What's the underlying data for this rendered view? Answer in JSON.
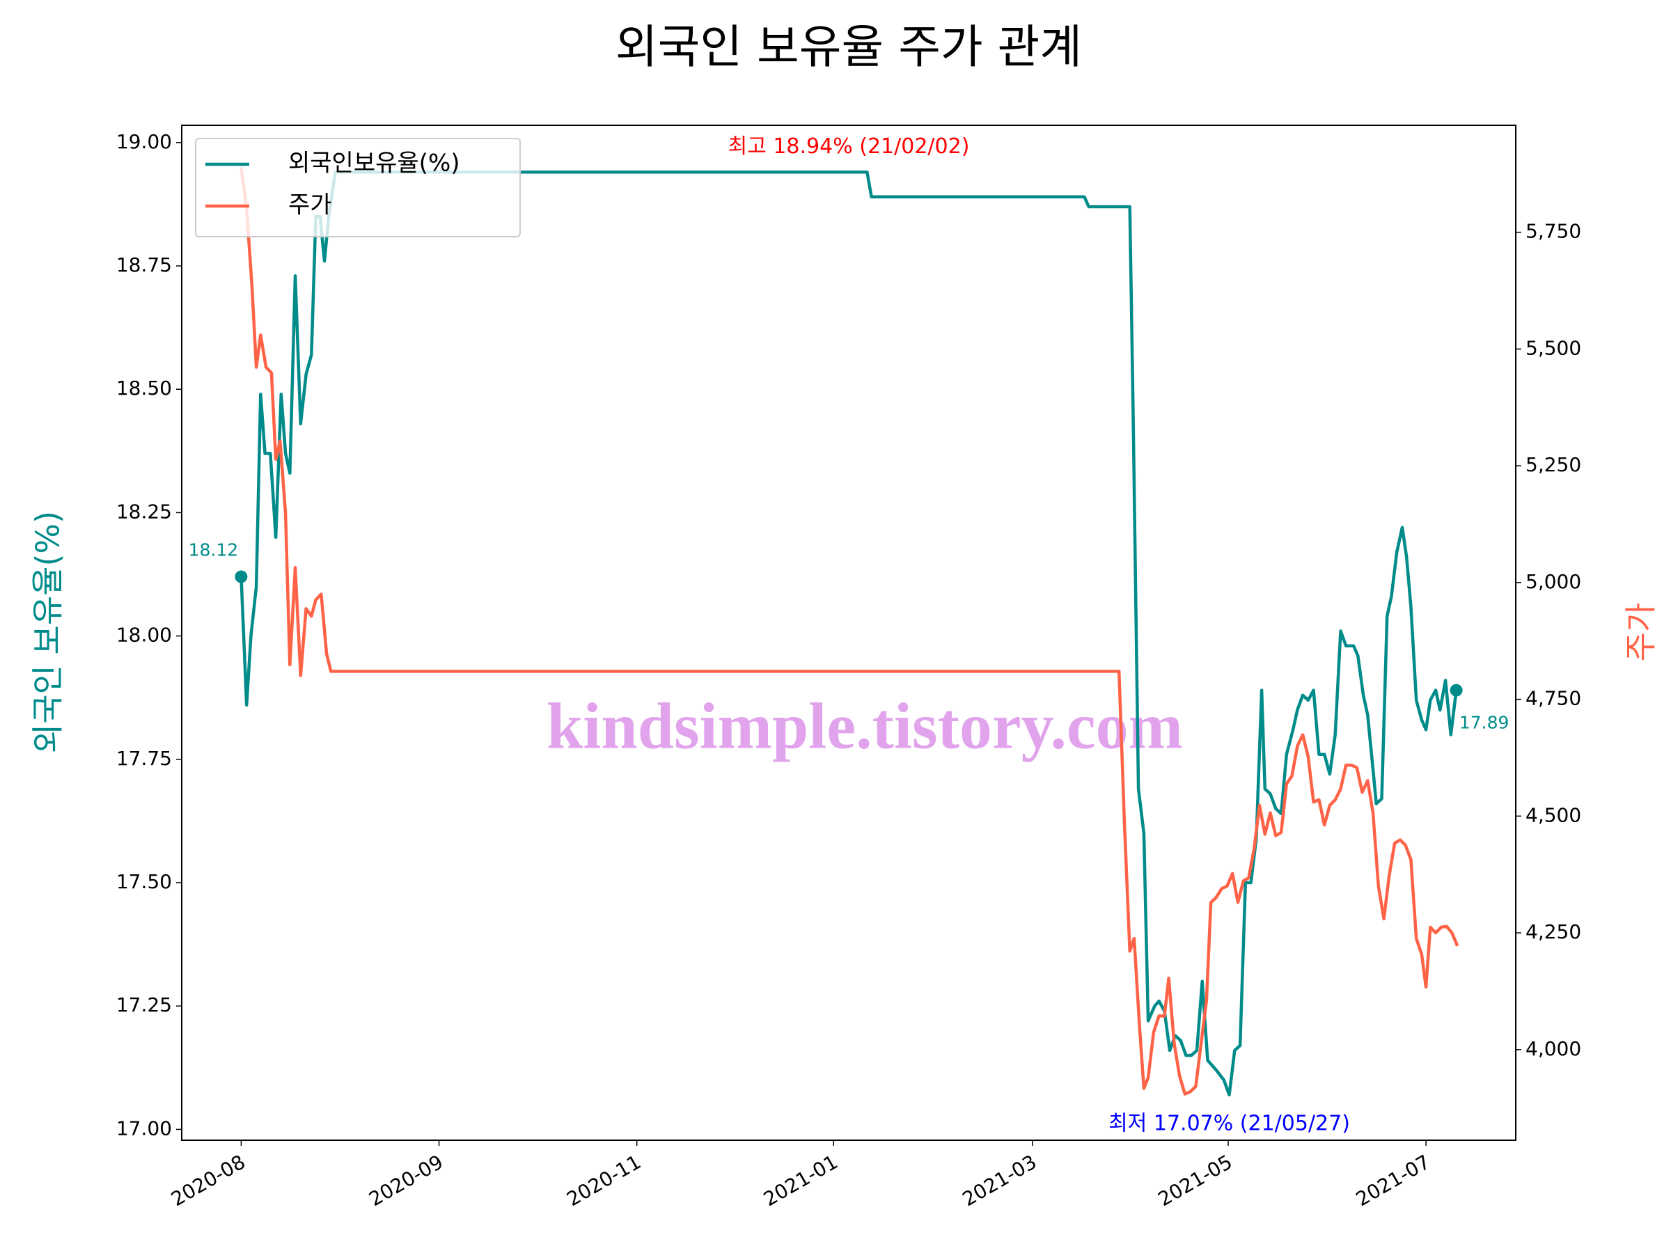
{
  "chart_data": {
    "type": "line",
    "title": "외국인 보유율 주가 관계",
    "ylabel": "외국인 보유율(%)",
    "y2label": "주가",
    "watermark": "kindsimple.tistory.com",
    "legend": "upper left",
    "xlim": [
      -55,
      1179
    ],
    "xticks": [
      {
        "value": 0,
        "label": "2020-08"
      },
      {
        "value": 183,
        "label": "2020-09"
      },
      {
        "value": 366,
        "label": "2020-11"
      },
      {
        "value": 548,
        "label": "2021-01"
      },
      {
        "value": 732,
        "label": "2021-03"
      },
      {
        "value": 913,
        "label": "2021-05"
      },
      {
        "value": 1096,
        "label": "2021-07"
      }
    ],
    "ylim": [
      16.978,
      19.035
    ],
    "yticks": [
      {
        "value": 17,
        "label": "17.00"
      },
      {
        "value": 17.25,
        "label": "17.25"
      },
      {
        "value": 17.5,
        "label": "17.50"
      },
      {
        "value": 17.75,
        "label": "17.75"
      },
      {
        "value": 18,
        "label": "18.00"
      },
      {
        "value": 18.25,
        "label": "18.25"
      },
      {
        "value": 18.5,
        "label": "18.50"
      },
      {
        "value": 18.75,
        "label": "18.75"
      },
      {
        "value": 19,
        "label": "19.00"
      }
    ],
    "y2lim": [
      3806,
      5979
    ],
    "y2ticks": [
      {
        "value": 4000,
        "label": "4,000"
      },
      {
        "value": 4250,
        "label": "4,250"
      },
      {
        "value": 4500,
        "label": "4,500"
      },
      {
        "value": 4750,
        "label": "4,750"
      },
      {
        "value": 5000,
        "label": "5,000"
      },
      {
        "value": 5250,
        "label": "5,250"
      },
      {
        "value": 5500,
        "label": "5,500"
      },
      {
        "value": 5750,
        "label": "5,750"
      }
    ],
    "series": [
      {
        "name": "외국인보유율(%)",
        "color": "#008b8b",
        "axis": "y",
        "x": [
          0,
          5,
          9,
          14,
          18,
          22,
          27,
          32,
          37,
          41,
          45,
          50,
          55,
          60,
          65,
          69,
          73,
          77,
          81,
          87,
          92,
          579,
          583,
          780,
          784,
          822,
          825,
          830,
          835,
          839,
          845,
          849,
          854,
          859,
          864,
          869,
          874,
          879,
          884,
          889,
          894,
          902,
          909,
          914,
          919,
          924,
          929,
          934,
          939,
          944,
          947,
          952,
          957,
          962,
          967,
          973,
          977,
          982,
          987,
          992,
          997,
          1002,
          1007,
          1012,
          1017,
          1022,
          1029,
          1033,
          1038,
          1042,
          1047,
          1050,
          1055,
          1060,
          1064,
          1069,
          1074,
          1078,
          1082,
          1087,
          1092,
          1096,
          1100,
          1105,
          1109,
          1114,
          1119,
          1124
        ],
        "values": [
          18.12,
          17.86,
          18.0,
          18.1,
          18.49,
          18.37,
          18.37,
          18.2,
          18.49,
          18.37,
          18.33,
          18.73,
          18.43,
          18.53,
          18.57,
          18.85,
          18.85,
          18.76,
          18.85,
          18.94,
          18.94,
          18.94,
          18.89,
          18.89,
          18.87,
          18.87,
          18.46,
          17.69,
          17.6,
          17.22,
          17.25,
          17.26,
          17.24,
          17.16,
          17.19,
          17.18,
          17.15,
          17.15,
          17.16,
          17.3,
          17.14,
          17.12,
          17.1,
          17.07,
          17.16,
          17.17,
          17.5,
          17.5,
          17.59,
          17.89,
          17.69,
          17.68,
          17.65,
          17.64,
          17.76,
          17.81,
          17.85,
          17.88,
          17.87,
          17.89,
          17.76,
          17.76,
          17.72,
          17.8,
          18.01,
          17.98,
          17.98,
          17.96,
          17.88,
          17.84,
          17.73,
          17.66,
          17.67,
          18.04,
          18.08,
          18.17,
          18.22,
          18.16,
          18.06,
          17.87,
          17.83,
          17.81,
          17.87,
          17.89,
          17.85,
          17.91,
          17.8,
          17.89
        ]
      },
      {
        "name": "주가",
        "color": "#ff6347",
        "axis": "y2",
        "x": [
          0,
          5,
          10,
          14,
          18,
          23,
          28,
          32,
          36,
          41,
          45,
          50,
          55,
          60,
          65,
          69,
          74,
          79,
          83,
          812,
          817,
          822,
          826,
          831,
          835,
          839,
          844,
          849,
          854,
          858,
          863,
          868,
          873,
          878,
          883,
          888,
          893,
          897,
          902,
          907,
          912,
          917,
          922,
          927,
          932,
          937,
          942,
          947,
          952,
          957,
          962,
          967,
          972,
          977,
          982,
          987,
          992,
          997,
          1002,
          1007,
          1012,
          1017,
          1022,
          1027,
          1032,
          1037,
          1042,
          1047,
          1052,
          1057,
          1062,
          1067,
          1072,
          1077,
          1082,
          1087,
          1092,
          1096,
          1100,
          1105,
          1110,
          1115,
          1120,
          1125
        ],
        "values": [
          5889,
          5801,
          5634,
          5461,
          5530,
          5461,
          5449,
          5264,
          5303,
          5148,
          4824,
          5032,
          4801,
          4944,
          4928,
          4963,
          4975,
          4847,
          4810,
          4810,
          4488,
          4211,
          4238,
          4049,
          3917,
          3940,
          4037,
          4072,
          4072,
          4153,
          4014,
          3944,
          3905,
          3910,
          3921,
          4014,
          4106,
          4315,
          4326,
          4345,
          4350,
          4377,
          4315,
          4361,
          4368,
          4431,
          4523,
          4461,
          4507,
          4458,
          4465,
          4569,
          4586,
          4650,
          4674,
          4627,
          4530,
          4535,
          4481,
          4523,
          4535,
          4558,
          4609,
          4609,
          4604,
          4551,
          4576,
          4507,
          4350,
          4280,
          4373,
          4442,
          4449,
          4438,
          4407,
          4238,
          4204,
          4134,
          4262,
          4250,
          4262,
          4264,
          4250,
          4222
        ]
      }
    ],
    "annotations": [
      {
        "text": "최고 18.94% (21/02/02)",
        "x": 562,
        "y": 18.94,
        "color": "#ff0000"
      },
      {
        "text": "최저 17.07% (21/05/27)",
        "x": 914,
        "y": 17.07,
        "color": "#0000ff"
      },
      {
        "text": "18.12",
        "x": 0,
        "y": 18.12,
        "color": "#008b8b"
      },
      {
        "text": "17.89",
        "x": 1124,
        "y": 17.89,
        "color": "#008b8b"
      }
    ]
  }
}
